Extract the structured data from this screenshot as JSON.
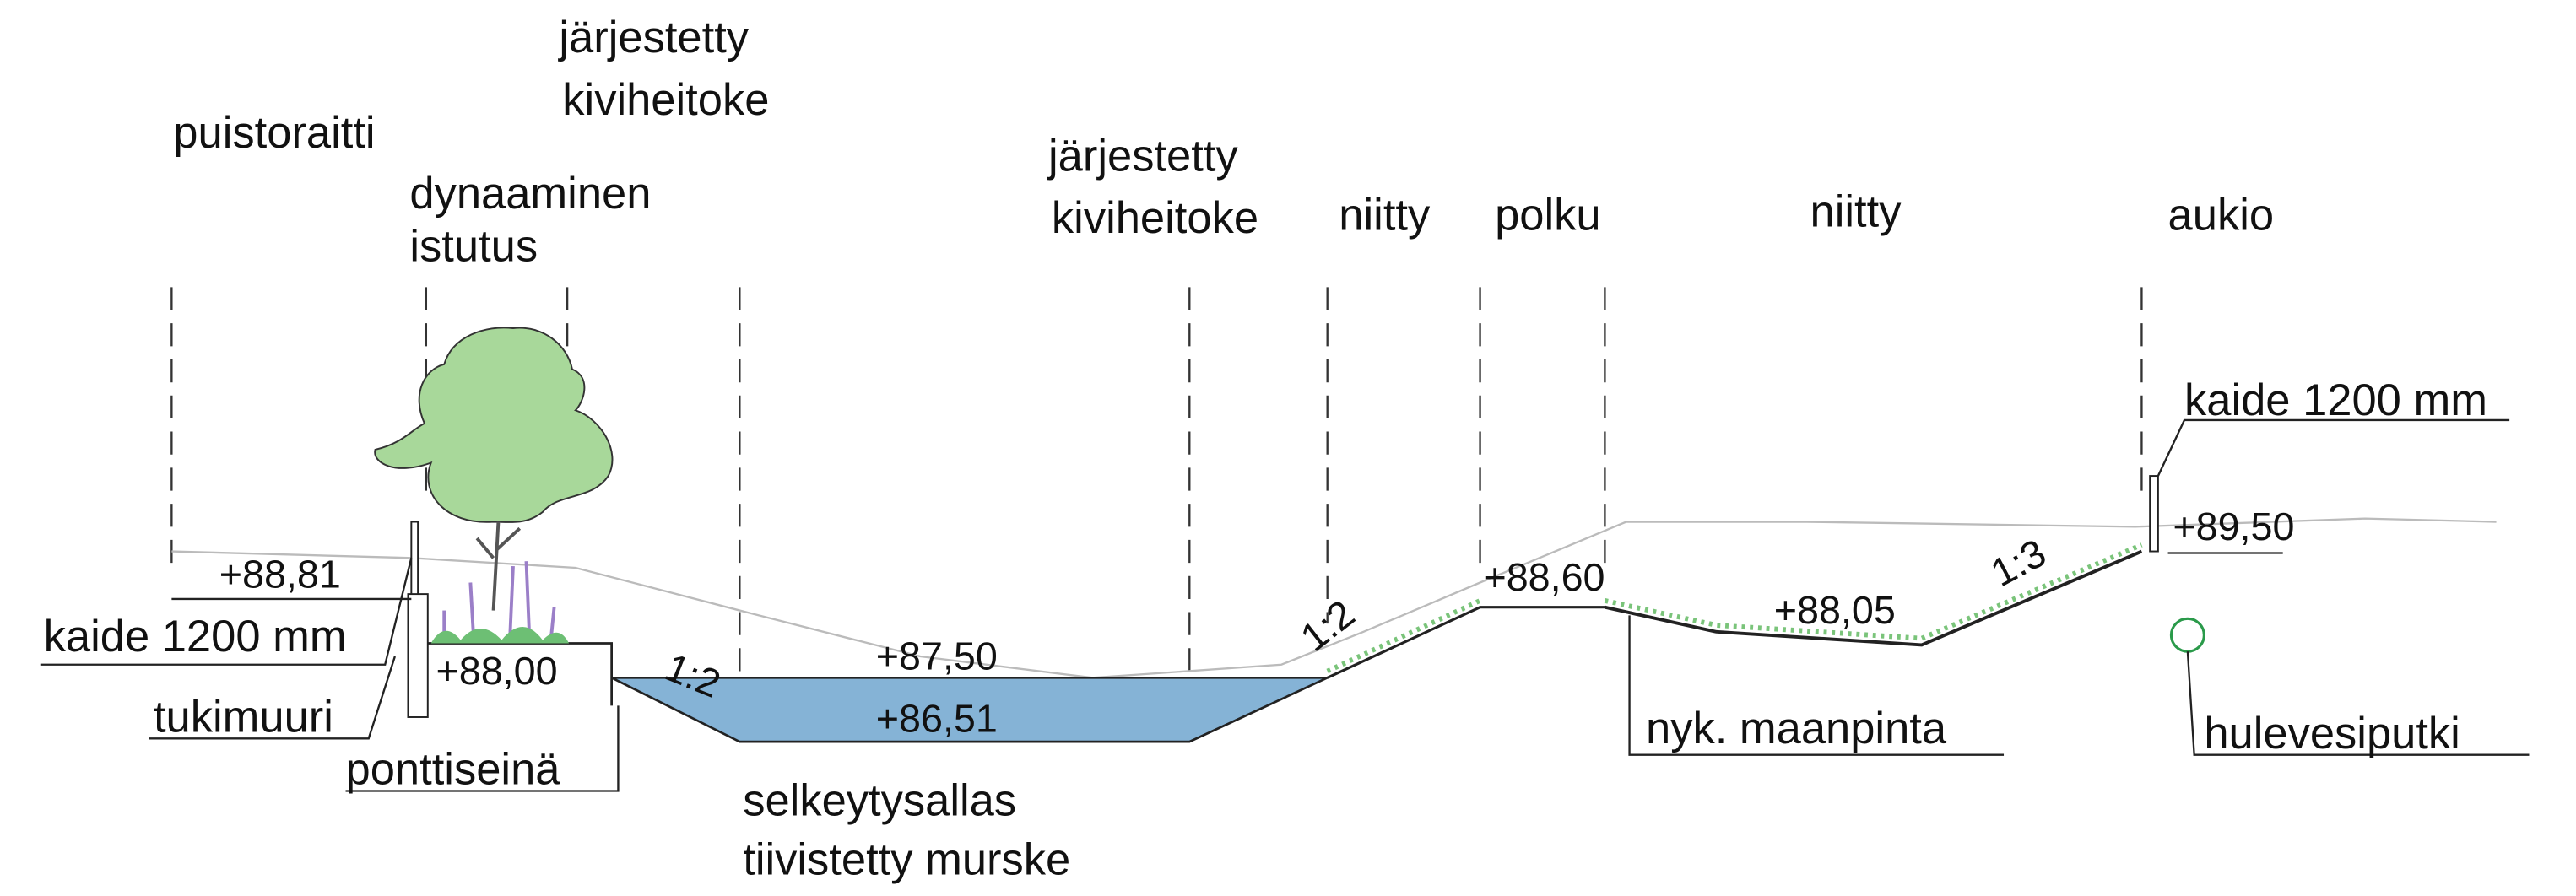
{
  "zones": [
    {
      "lines": [
        "puistoraitti"
      ]
    },
    {
      "lines": [
        "järjestetty",
        "kiviheitoke"
      ]
    },
    {
      "lines": [
        "dynaaminen",
        "istutus"
      ]
    },
    {
      "lines": [
        "järjestetty",
        "kiviheitoke"
      ]
    },
    {
      "lines": [
        "niitty"
      ]
    },
    {
      "lines": [
        "polku"
      ]
    },
    {
      "lines": [
        "niitty"
      ]
    },
    {
      "lines": [
        "aukio"
      ]
    }
  ],
  "elevations": [
    "+88,81",
    "+88,00",
    "+87,50",
    "+86,51",
    "+88,60",
    "+88,05",
    "+89,50"
  ],
  "slopes": [
    "1:2",
    "1:2",
    "1:3"
  ],
  "callouts": [
    {
      "lines": [
        "kaide 1200 mm"
      ]
    },
    {
      "lines": [
        "tukimuuri"
      ]
    },
    {
      "lines": [
        "ponttiseinä"
      ]
    },
    {
      "lines": [
        "selkeytysallas",
        "tiivistetty murske"
      ]
    },
    {
      "lines": [
        "nyk. maanpinta"
      ]
    },
    {
      "lines": [
        "hulevesiputki"
      ]
    },
    {
      "lines": [
        "kaide 1200 mm"
      ]
    }
  ]
}
